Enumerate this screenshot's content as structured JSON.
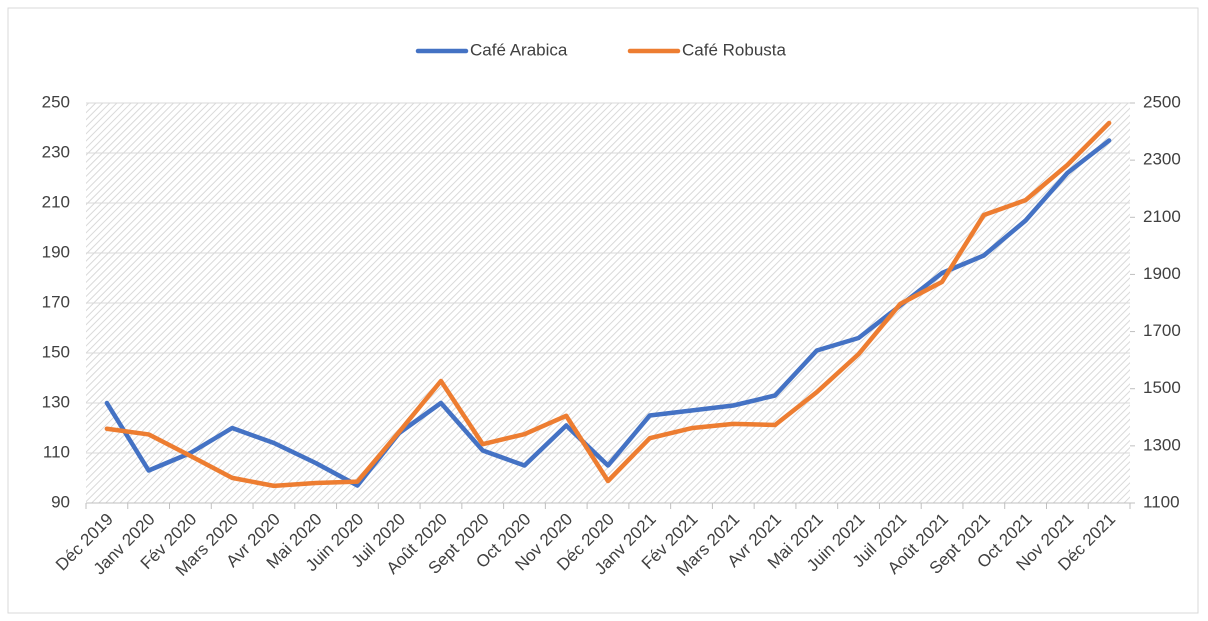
{
  "chart_data": {
    "type": "line",
    "categories": [
      "Déc 2019",
      "Janv 2020",
      "Fév 2020",
      "Mars 2020",
      "Avr 2020",
      "Mai 2020",
      "Juin 2020",
      "Juil 2020",
      "Août 2020",
      "Sept 2020",
      "Oct 2020",
      "Nov 2020",
      "Déc 2020",
      "Janv 2021",
      "Fév 2021",
      "Mars 2021",
      "Avr 2021",
      "Mai 2021",
      "Juin 2021",
      "Juil 2021",
      "Août 2021",
      "Sept 2021",
      "Oct 2021",
      "Nov 2021",
      "Déc 2021"
    ],
    "series": [
      {
        "name": "Café Arabica",
        "color": "#4472c4",
        "axis": "y",
        "values": [
          130,
          103,
          110,
          120,
          114,
          106,
          97,
          118,
          130,
          111,
          105,
          121,
          105,
          125,
          127,
          129,
          133,
          151,
          156,
          169,
          182,
          189,
          203,
          222,
          235
        ]
      },
      {
        "name": "Café Robusta",
        "color": "#ed7d31",
        "axis": "y2",
        "values": [
          1360,
          1340,
          1265,
          1188,
          1160,
          1170,
          1175,
          1349,
          1527,
          1306,
          1341,
          1405,
          1177,
          1327,
          1362,
          1377,
          1373,
          1488,
          1621,
          1797,
          1874,
          2108,
          2160,
          2283,
          2430
        ]
      }
    ],
    "ylim": [
      90,
      250
    ],
    "yticks": [
      90,
      110,
      130,
      150,
      170,
      190,
      210,
      230,
      250
    ],
    "y2lim": [
      1100,
      2500
    ],
    "y2ticks": [
      1100,
      1300,
      1500,
      1700,
      1900,
      2100,
      2300,
      2500
    ],
    "grid": true,
    "legend": "top"
  }
}
